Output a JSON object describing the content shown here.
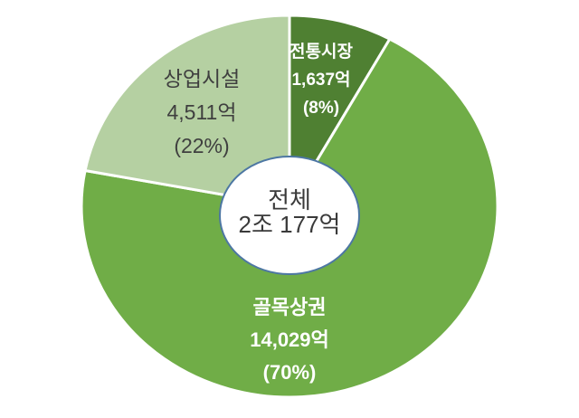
{
  "chart_data": {
    "type": "pie",
    "donut": true,
    "start_angle_deg": 0,
    "direction": "clockwise",
    "unit": "억",
    "title": "",
    "legend": "none",
    "center_label": {
      "line1": "전체",
      "line2": "2조 177억"
    },
    "segments": [
      {
        "key": "traditional-market",
        "label": "전통시장",
        "value": 1637,
        "value_text": "1,637억",
        "pct": 8,
        "pct_text": "(8%)",
        "color": "#4f8032",
        "text_color": "#ffffff"
      },
      {
        "key": "alley-commercial",
        "label": "골목상권",
        "value": 14029,
        "value_text": "14,029억",
        "pct": 70,
        "pct_text": "(70%)",
        "color": "#70ad47",
        "text_color": "#ffffff"
      },
      {
        "key": "commercial-facility",
        "label": "상업시설",
        "value": 4511,
        "value_text": "4,511억",
        "pct": 22,
        "pct_text": "(22%)",
        "color": "#b5d0a2",
        "text_color": "#3f3f3f"
      }
    ]
  },
  "colors": {
    "background": "#ffffff",
    "separator": "#ffffff",
    "hole_fill": "#ffffff",
    "hole_border": "#4d77a3",
    "center_text": "#3a3a3a"
  }
}
